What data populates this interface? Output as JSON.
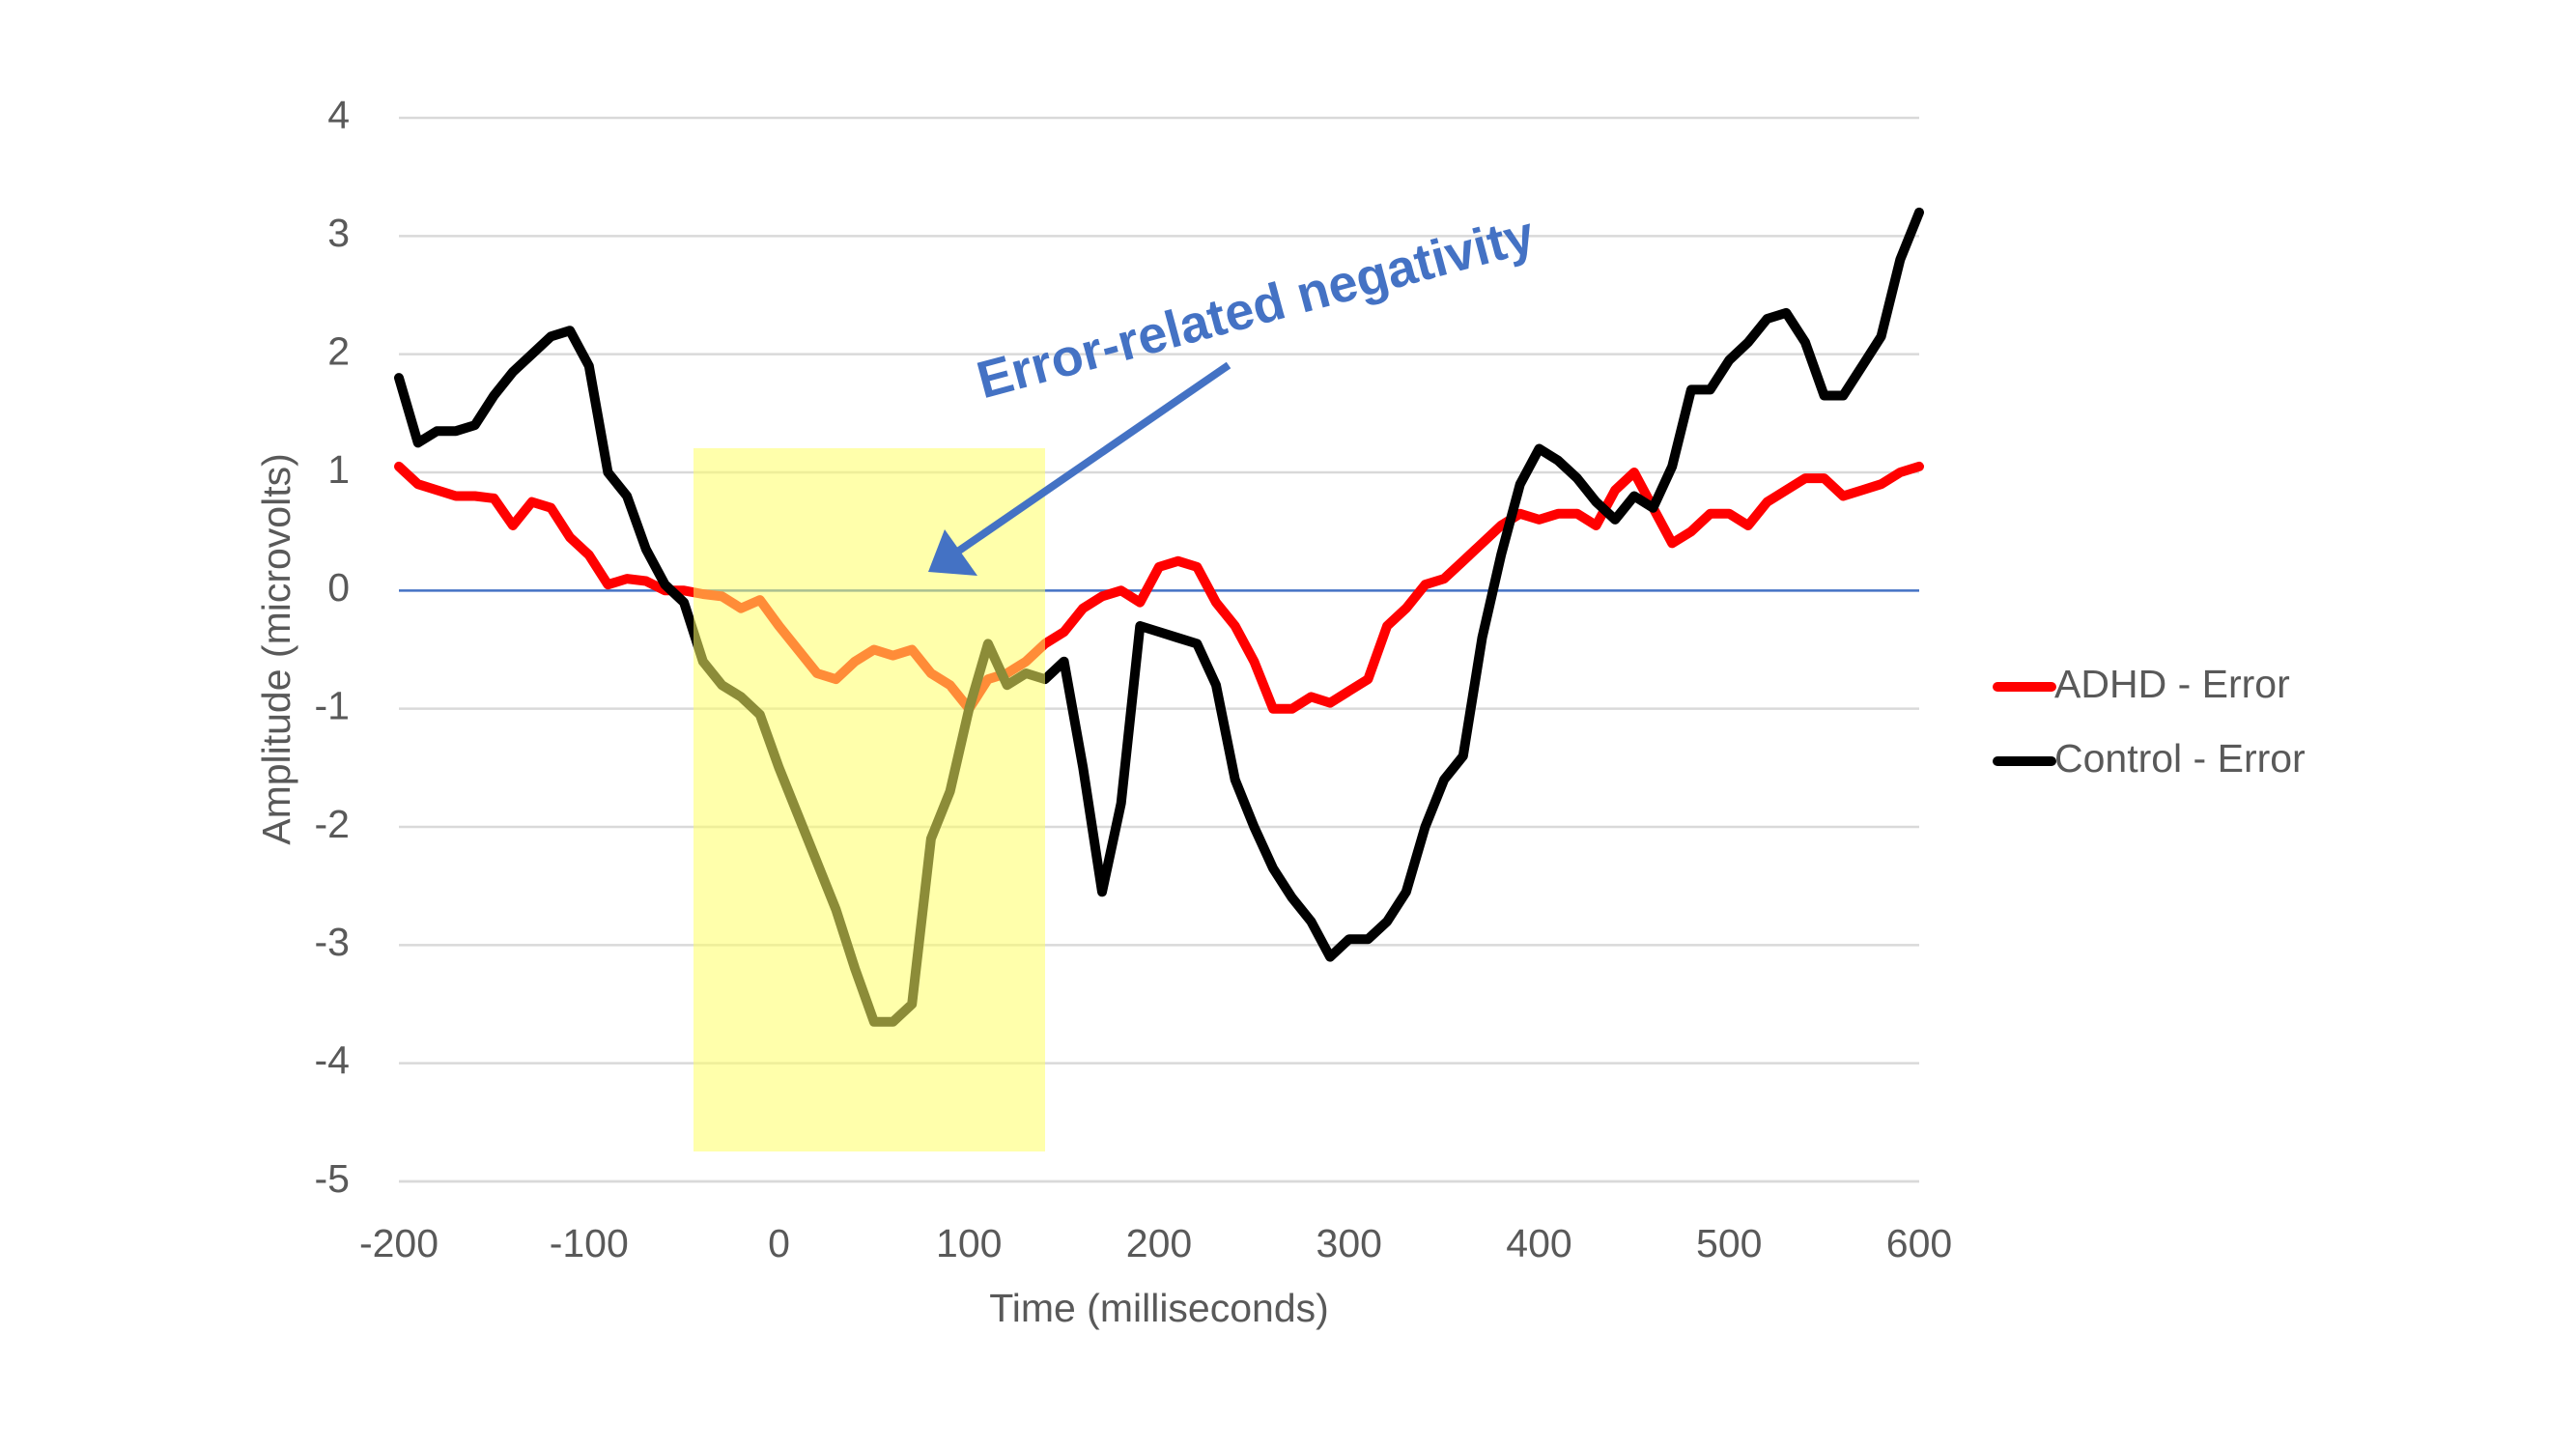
{
  "chart_data": {
    "type": "line",
    "x_label": "Time (milliseconds)",
    "y_label": "Amplitude (microvolts)",
    "annotation": "Error-related negativity",
    "x": [
      -200,
      -190,
      -180,
      -170,
      -160,
      -150,
      -140,
      -130,
      -120,
      -110,
      -100,
      -90,
      -80,
      -70,
      -60,
      -50,
      -40,
      -30,
      -20,
      -10,
      0,
      10,
      20,
      30,
      40,
      50,
      60,
      70,
      80,
      90,
      100,
      110,
      120,
      130,
      140,
      150,
      160,
      170,
      180,
      190,
      200,
      210,
      220,
      230,
      240,
      250,
      260,
      270,
      280,
      290,
      300,
      310,
      320,
      330,
      340,
      350,
      360,
      370,
      380,
      390,
      400,
      410,
      420,
      430,
      440,
      450,
      460,
      470,
      480,
      490,
      500,
      510,
      520,
      530,
      540,
      550,
      560,
      570,
      580,
      590,
      600
    ],
    "series": [
      {
        "name": "ADHD - Error",
        "color": "#ff0000",
        "values": [
          1.05,
          0.9,
          0.85,
          0.8,
          0.8,
          0.78,
          0.55,
          0.75,
          0.7,
          0.45,
          0.3,
          0.05,
          0.1,
          0.08,
          0.0,
          0.0,
          -0.03,
          -0.05,
          -0.15,
          -0.08,
          -0.3,
          -0.5,
          -0.7,
          -0.75,
          -0.6,
          -0.5,
          -0.55,
          -0.5,
          -0.7,
          -0.8,
          -1.0,
          -0.75,
          -0.7,
          -0.6,
          -0.45,
          -0.35,
          -0.15,
          -0.05,
          0.0,
          -0.1,
          0.2,
          0.25,
          0.2,
          -0.1,
          -0.3,
          -0.6,
          -1.0,
          -1.0,
          -0.9,
          -0.95,
          -0.85,
          -0.75,
          -0.3,
          -0.15,
          0.05,
          0.1,
          0.25,
          0.4,
          0.55,
          0.65,
          0.6,
          0.65,
          0.65,
          0.55,
          0.85,
          1.0,
          0.7,
          0.4,
          0.5,
          0.65,
          0.65,
          0.55,
          0.75,
          0.85,
          0.95,
          0.95,
          0.8,
          0.85,
          0.9,
          1.0,
          1.05
        ]
      },
      {
        "name": "Control - Error",
        "color": "#000000",
        "values": [
          1.8,
          1.25,
          1.35,
          1.35,
          1.4,
          1.65,
          1.85,
          2.0,
          2.15,
          2.2,
          1.9,
          1.0,
          0.8,
          0.35,
          0.05,
          -0.1,
          -0.6,
          -0.8,
          -0.9,
          -1.05,
          -1.5,
          -1.9,
          -2.3,
          -2.7,
          -3.2,
          -3.65,
          -3.65,
          -3.5,
          -2.1,
          -1.7,
          -1.0,
          -0.45,
          -0.8,
          -0.7,
          -0.75,
          -0.6,
          -1.5,
          -2.55,
          -1.8,
          -0.3,
          -0.35,
          -0.4,
          -0.45,
          -0.8,
          -1.6,
          -2.0,
          -2.35,
          -2.6,
          -2.8,
          -3.1,
          -2.95,
          -2.95,
          -2.8,
          -2.55,
          -2.0,
          -1.6,
          -1.4,
          -0.4,
          0.3,
          0.9,
          1.2,
          1.1,
          0.95,
          0.75,
          0.6,
          0.8,
          0.7,
          1.05,
          1.7,
          1.7,
          1.95,
          2.1,
          2.3,
          2.35,
          2.1,
          1.65,
          1.65,
          1.9,
          2.15,
          2.8,
          3.2
        ]
      }
    ],
    "xlim": [
      -200,
      600
    ],
    "xticks": [
      -200,
      -100,
      0,
      100,
      200,
      300,
      400,
      500,
      600
    ],
    "ylim": [
      -5,
      4
    ],
    "yticks": [
      -5,
      -4,
      -3,
      -2,
      -1,
      0,
      1,
      2,
      3,
      4
    ],
    "grid": true,
    "legend": "right"
  }
}
